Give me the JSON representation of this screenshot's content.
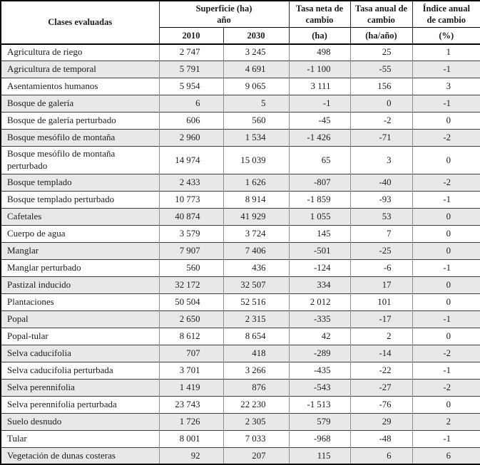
{
  "colors": {
    "row_stripe": "#e8e8e8",
    "outer_border": "#000000",
    "grid_vertical": "#909090",
    "grid_horizontal": "#3c3c3c",
    "text": "#1c1c1c"
  },
  "table": {
    "header": {
      "classes": "Clases evaluadas",
      "surface_group": "Superficie (ha)\naño",
      "year_2010": "2010",
      "year_2030": "2030",
      "net_change": "Tasa neta de\ncambio",
      "net_change_unit": "(ha)",
      "annual_rate": "Tasa anual de\ncambio",
      "annual_rate_unit": "(ha/año)",
      "annual_index": "Índice anual\nde cambio",
      "annual_index_unit": "(%)"
    },
    "rows": [
      {
        "label": "Agricultura de riego",
        "values": [
          "2 747",
          "3 245",
          "498",
          "25",
          "1"
        ]
      },
      {
        "label": "Agricultura de temporal",
        "values": [
          "5 791",
          "4 691",
          "-1 100",
          "-55",
          "-1"
        ]
      },
      {
        "label": "Asentamientos humanos",
        "values": [
          "5 954",
          "9 065",
          "3 111",
          "156",
          "3"
        ]
      },
      {
        "label": "Bosque de galería",
        "values": [
          "6",
          "5",
          "-1",
          "0",
          "-1"
        ]
      },
      {
        "label": "Bosque de galería perturbado",
        "values": [
          "606",
          "560",
          "-45",
          "-2",
          "0"
        ]
      },
      {
        "label": "Bosque mesófilo de montaña",
        "values": [
          "2 960",
          "1 534",
          "-1 426",
          "-71",
          "-2"
        ]
      },
      {
        "label": "Bosque mesófilo de montaña\nperturbado",
        "values": [
          "14 974",
          "15 039",
          "65",
          "3",
          "0"
        ]
      },
      {
        "label": "Bosque templado",
        "values": [
          "2 433",
          "1 626",
          "-807",
          "-40",
          "-2"
        ]
      },
      {
        "label": "Bosque templado perturbado",
        "values": [
          "10 773",
          "8 914",
          "-1 859",
          "-93",
          "-1"
        ]
      },
      {
        "label": "Cafetales",
        "values": [
          "40 874",
          "41 929",
          "1 055",
          "53",
          "0"
        ]
      },
      {
        "label": "Cuerpo de agua",
        "values": [
          "3 579",
          "3 724",
          "145",
          "7",
          "0"
        ]
      },
      {
        "label": "Manglar",
        "values": [
          "7 907",
          "7 406",
          "-501",
          "-25",
          "0"
        ]
      },
      {
        "label": "Manglar perturbado",
        "values": [
          "560",
          "436",
          "-124",
          "-6",
          "-1"
        ]
      },
      {
        "label": "Pastizal inducido",
        "values": [
          "32 172",
          "32 507",
          "334",
          "17",
          "0"
        ]
      },
      {
        "label": "Plantaciones",
        "values": [
          "50 504",
          "52 516",
          "2 012",
          "101",
          "0"
        ]
      },
      {
        "label": "Popal",
        "values": [
          "2 650",
          "2 315",
          "-335",
          "-17",
          "-1"
        ]
      },
      {
        "label": "Popal-tular",
        "values": [
          "8 612",
          "8 654",
          "42",
          "2",
          "0"
        ]
      },
      {
        "label": "Selva caducifolia",
        "values": [
          "707",
          "418",
          "-289",
          "-14",
          "-2"
        ]
      },
      {
        "label": "Selva caducifolia perturbada",
        "values": [
          "3 701",
          "3 266",
          "-435",
          "-22",
          "-1"
        ]
      },
      {
        "label": "Selva perennifolia",
        "values": [
          "1 419",
          "876",
          "-543",
          "-27",
          "-2"
        ]
      },
      {
        "label": "Selva perennifolia perturbada",
        "values": [
          "23 743",
          "22 230",
          "-1 513",
          "-76",
          "0"
        ]
      },
      {
        "label": "Suelo desnudo",
        "values": [
          "1 726",
          "2 305",
          "579",
          "29",
          "2"
        ]
      },
      {
        "label": "Tular",
        "values": [
          "8 001",
          "7 033",
          "-968",
          "-48",
          "-1"
        ]
      },
      {
        "label": "Vegetación de dunas costeras",
        "values": [
          "92",
          "207",
          "115",
          "6",
          "6"
        ]
      }
    ]
  },
  "chart_data": {
    "type": "table",
    "title": "",
    "columns": [
      "Clases evaluadas",
      "Superficie (ha) año 2010",
      "Superficie (ha) año 2030",
      "Tasa neta de cambio (ha)",
      "Tasa anual de cambio (ha/año)",
      "Índice anual de cambio (%)"
    ],
    "rows": [
      [
        "Agricultura de riego",
        2747,
        3245,
        498,
        25,
        1
      ],
      [
        "Agricultura de temporal",
        5791,
        4691,
        -1100,
        -55,
        -1
      ],
      [
        "Asentamientos humanos",
        5954,
        9065,
        3111,
        156,
        3
      ],
      [
        "Bosque de galería",
        6,
        5,
        -1,
        0,
        -1
      ],
      [
        "Bosque de galería perturbado",
        606,
        560,
        -45,
        -2,
        0
      ],
      [
        "Bosque mesófilo de montaña",
        2960,
        1534,
        -1426,
        -71,
        -2
      ],
      [
        "Bosque mesófilo de montaña perturbado",
        14974,
        15039,
        65,
        3,
        0
      ],
      [
        "Bosque templado",
        2433,
        1626,
        -807,
        -40,
        -2
      ],
      [
        "Bosque templado perturbado",
        10773,
        8914,
        -1859,
        -93,
        -1
      ],
      [
        "Cafetales",
        40874,
        41929,
        1055,
        53,
        0
      ],
      [
        "Cuerpo de agua",
        3579,
        3724,
        145,
        7,
        0
      ],
      [
        "Manglar",
        7907,
        7406,
        -501,
        -25,
        0
      ],
      [
        "Manglar perturbado",
        560,
        436,
        -124,
        -6,
        -1
      ],
      [
        "Pastizal inducido",
        32172,
        32507,
        334,
        17,
        0
      ],
      [
        "Plantaciones",
        50504,
        52516,
        2012,
        101,
        0
      ],
      [
        "Popal",
        2650,
        2315,
        -335,
        -17,
        -1
      ],
      [
        "Popal-tular",
        8612,
        8654,
        42,
        2,
        0
      ],
      [
        "Selva caducifolia",
        707,
        418,
        -289,
        -14,
        -2
      ],
      [
        "Selva caducifolia perturbada",
        3701,
        3266,
        -435,
        -22,
        -1
      ],
      [
        "Selva perennifolia",
        1419,
        876,
        -543,
        -27,
        -2
      ],
      [
        "Selva perennifolia perturbada",
        23743,
        22230,
        -1513,
        -76,
        0
      ],
      [
        "Suelo desnudo",
        1726,
        2305,
        579,
        29,
        2
      ],
      [
        "Tular",
        8001,
        7033,
        -968,
        -48,
        -1
      ],
      [
        "Vegetación de dunas costeras",
        92,
        207,
        115,
        6,
        6
      ]
    ]
  }
}
